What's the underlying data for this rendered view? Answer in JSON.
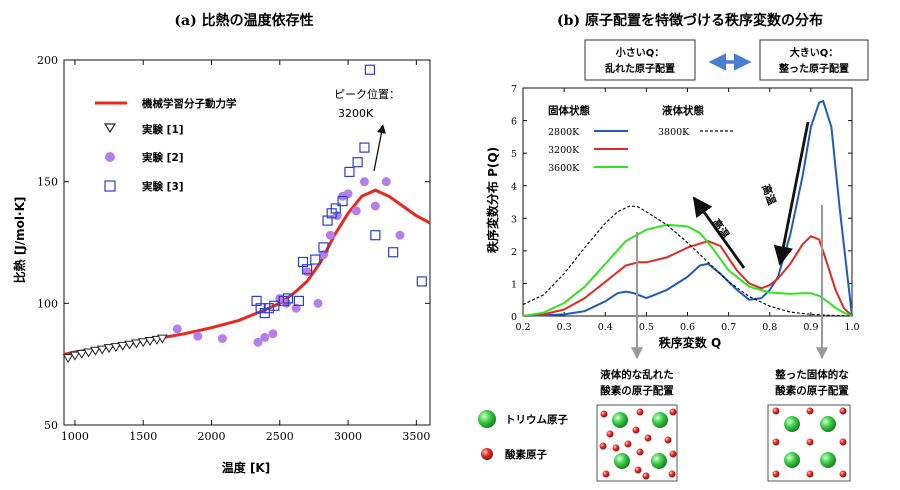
{
  "chart_data": [
    {
      "type": "scatter",
      "panel": "a",
      "title": "(a) 比熱の温度依存性",
      "xlabel": "温度 [K]",
      "ylabel": "比熱 [J/mol·K]",
      "xlim": [
        920,
        3600
      ],
      "ylim": [
        50,
        200
      ],
      "xticks": [
        1000,
        1500,
        2000,
        2500,
        3000,
        3500
      ],
      "yticks": [
        50,
        100,
        150,
        200
      ],
      "legend_position": "top-left",
      "annotation": "ピーク位置：\n3200K",
      "annotation_lines": [
        "ピーク位置：",
        "3200K"
      ],
      "series": [
        {
          "name": "機械学習分子動力学",
          "kind": "line",
          "color": "#e8281e",
          "x": [
            920,
            1000,
            1200,
            1400,
            1600,
            1800,
            2000,
            2200,
            2400,
            2500,
            2600,
            2700,
            2800,
            2900,
            3000,
            3100,
            3200,
            3300,
            3400,
            3500,
            3600
          ],
          "y": [
            79,
            80,
            81.5,
            83.5,
            85.5,
            87.5,
            90,
            93,
            97.5,
            100,
            104,
            109,
            117,
            128,
            137,
            144,
            146.5,
            144,
            140,
            136,
            133
          ]
        },
        {
          "name": "実験 [1]",
          "kind": "marker",
          "marker": "triangle-down",
          "color": "#222222",
          "x": [
            950,
            1000,
            1050,
            1100,
            1150,
            1200,
            1250,
            1300,
            1350,
            1400,
            1450,
            1500,
            1550,
            1600,
            1640
          ],
          "y": [
            77.5,
            78.5,
            79.2,
            79.8,
            80.5,
            81,
            81.6,
            82,
            82.5,
            83,
            83.5,
            84,
            84.5,
            85,
            85.5
          ]
        },
        {
          "name": "実験 [2]",
          "kind": "marker",
          "marker": "circle",
          "color": "#b57fe8",
          "x": [
            1750,
            1900,
            2080,
            2340,
            2390,
            2450,
            2500,
            2550,
            2620,
            2700,
            2780,
            2820,
            2870,
            2920,
            2960,
            3000,
            3060,
            3120,
            3200,
            3280,
            3380
          ],
          "y": [
            89.5,
            86.5,
            85.5,
            84,
            86,
            87.5,
            102,
            100,
            98,
            113,
            100,
            120,
            128,
            136,
            144,
            145,
            138,
            150,
            140,
            150,
            128
          ]
        },
        {
          "name": "実験 [3]",
          "kind": "marker",
          "marker": "square-open",
          "color": "#2a3fd0",
          "x": [
            2330,
            2360,
            2390,
            2420,
            2460,
            2530,
            2560,
            2640,
            2670,
            2700,
            2760,
            2820,
            2850,
            2880,
            2910,
            2960,
            3010,
            3070,
            3120,
            3160,
            3200,
            3330,
            3540
          ],
          "y": [
            101,
            98,
            96,
            98,
            99,
            101,
            102,
            101,
            117,
            114,
            118,
            123,
            134,
            137,
            139,
            142,
            154,
            158,
            164,
            196,
            128,
            121,
            109
          ]
        }
      ]
    },
    {
      "type": "line",
      "panel": "b",
      "title": "(b) 原子配置を特徴づける秩序変数の分布",
      "xlabel": "秩序変数 Q",
      "ylabel": "秩序変数分布 P(Q)",
      "xlim": [
        0.2,
        1.0
      ],
      "ylim": [
        0,
        7
      ],
      "xticks": [
        0.2,
        0.3,
        0.4,
        0.5,
        0.6,
        0.7,
        0.8,
        0.9,
        1.0
      ],
      "yticks": [
        0,
        1,
        2,
        3,
        4,
        5,
        6,
        7
      ],
      "legend_position": "top-left",
      "legend_groups": [
        "固体状態",
        "液体状態"
      ],
      "series": [
        {
          "name": "2800K",
          "group": "固体状態",
          "color": "#1f5bbf",
          "dash": false,
          "x": [
            0.2,
            0.25,
            0.3,
            0.35,
            0.4,
            0.43,
            0.45,
            0.47,
            0.5,
            0.55,
            0.6,
            0.63,
            0.65,
            0.68,
            0.72,
            0.75,
            0.78,
            0.8,
            0.82,
            0.85,
            0.88,
            0.9,
            0.92,
            0.93,
            0.95,
            0.97,
            1.0
          ],
          "y": [
            0,
            0.02,
            0.05,
            0.15,
            0.45,
            0.7,
            0.75,
            0.7,
            0.55,
            0.8,
            1.2,
            1.55,
            1.6,
            1.3,
            0.8,
            0.5,
            0.55,
            0.8,
            1.2,
            2.5,
            4.3,
            5.8,
            6.55,
            6.6,
            5.8,
            3.3,
            0
          ]
        },
        {
          "name": "3200K",
          "group": "固体状態",
          "color": "#e02a20",
          "dash": false,
          "x": [
            0.2,
            0.25,
            0.3,
            0.35,
            0.4,
            0.45,
            0.48,
            0.5,
            0.55,
            0.6,
            0.65,
            0.68,
            0.72,
            0.75,
            0.78,
            0.8,
            0.82,
            0.85,
            0.88,
            0.9,
            0.92,
            0.94,
            0.96,
            0.98,
            1.0
          ],
          "y": [
            0,
            0.05,
            0.2,
            0.55,
            1.05,
            1.55,
            1.65,
            1.65,
            1.8,
            2.1,
            2.3,
            2.15,
            1.4,
            1.0,
            0.85,
            0.95,
            1.15,
            1.6,
            2.2,
            2.45,
            2.35,
            1.6,
            0.8,
            0.25,
            0
          ]
        },
        {
          "name": "3600K",
          "group": "固体状態",
          "color": "#2ee61e",
          "dash": false,
          "x": [
            0.2,
            0.25,
            0.3,
            0.35,
            0.4,
            0.45,
            0.5,
            0.55,
            0.6,
            0.63,
            0.66,
            0.7,
            0.75,
            0.8,
            0.85,
            0.88,
            0.9,
            0.92,
            0.94,
            0.96,
            0.98,
            1.0
          ],
          "y": [
            0,
            0.1,
            0.4,
            0.9,
            1.6,
            2.3,
            2.65,
            2.8,
            2.75,
            2.55,
            2.1,
            1.4,
            0.9,
            0.72,
            0.68,
            0.7,
            0.7,
            0.62,
            0.45,
            0.25,
            0.1,
            0
          ]
        },
        {
          "name": "3800K",
          "group": "液体状態",
          "color": "#111111",
          "dash": true,
          "x": [
            0.2,
            0.25,
            0.3,
            0.35,
            0.4,
            0.43,
            0.46,
            0.48,
            0.5,
            0.55,
            0.6,
            0.65,
            0.7,
            0.75,
            0.8,
            0.85,
            0.9,
            0.95,
            1.0
          ],
          "y": [
            0.35,
            0.65,
            1.3,
            2.1,
            2.85,
            3.2,
            3.38,
            3.35,
            3.2,
            2.8,
            2.25,
            1.65,
            1.05,
            0.6,
            0.3,
            0.12,
            0.05,
            0.02,
            0
          ]
        }
      ],
      "annotations": {
        "arrow_high": "高温",
        "arrow_high2": "高温"
      }
    }
  ],
  "boxes": {
    "small_q": "小さいQ：\n乱れた原子配置",
    "large_q": "大きいQ：\n整った原子配置"
  },
  "box_lines": {
    "small_q": [
      "小さいQ：",
      "乱れた原子配置"
    ],
    "large_q": [
      "大きいQ：",
      "整った原子配置"
    ]
  },
  "captions": {
    "liquid": [
      "液体的な乱れた",
      "酸素の原子配置"
    ],
    "solid": [
      "整った固体的な",
      "酸素の原子配置"
    ]
  },
  "atom_legend": {
    "thorium": "トリウム原子",
    "oxygen": "酸素原子"
  },
  "colors": {
    "thorium": "#3fc94a",
    "oxygen": "#d92b23",
    "double_arrow": "#4a7fd0",
    "guide_line": "#9a9a9a"
  }
}
